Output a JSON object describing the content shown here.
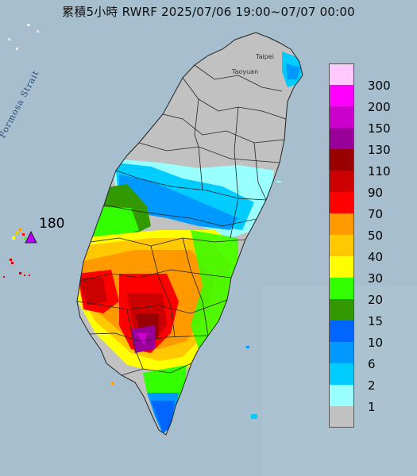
{
  "title": "累積5小時 RWRF 2025/07/06 19:00~07/07 00:00",
  "places": {
    "taipei": "Taipei",
    "taoyuan": "Taoyuan"
  },
  "strait_label": "Formosa Strait",
  "max_marker": {
    "value": "180",
    "color": "#b400ff"
  },
  "legend": [
    {
      "label": "300",
      "color": "#ffc8ff"
    },
    {
      "label": "200",
      "color": "#ff00ff"
    },
    {
      "label": "150",
      "color": "#cc00cc"
    },
    {
      "label": "130",
      "color": "#990099"
    },
    {
      "label": "110",
      "color": "#990000"
    },
    {
      "label": "90",
      "color": "#cc0000"
    },
    {
      "label": "70",
      "color": "#ff0000"
    },
    {
      "label": "50",
      "color": "#ff9900"
    },
    {
      "label": "40",
      "color": "#ffc800"
    },
    {
      "label": "30",
      "color": "#ffff00"
    },
    {
      "label": "20",
      "color": "#33ff00"
    },
    {
      "label": "15",
      "color": "#339900"
    },
    {
      "label": "10",
      "color": "#0066ff"
    },
    {
      "label": "6",
      "color": "#0099ff"
    },
    {
      "label": "2",
      "color": "#00ccff"
    },
    {
      "label": "1",
      "color": "#99ffff"
    },
    {
      "label": "",
      "color": "#c1c1c1"
    }
  ]
}
